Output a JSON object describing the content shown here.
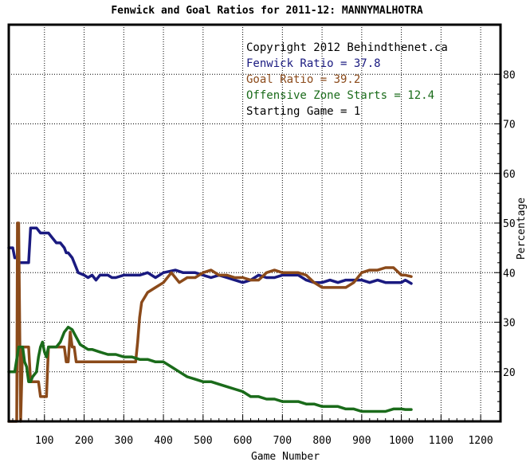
{
  "chart_data": {
    "type": "line",
    "title": "Fenwick and Goal Ratios for 2011-12: MANNYMALHOTRA",
    "xlabel": "Game Number",
    "ylabel": "Percentage",
    "xlim": [
      10,
      1250
    ],
    "ylim": [
      10,
      90
    ],
    "x_ticks": [
      100,
      200,
      300,
      400,
      500,
      600,
      700,
      800,
      900,
      1000,
      1100,
      1200
    ],
    "y_ticks": [
      20,
      30,
      40,
      50,
      60,
      70,
      80
    ],
    "grid": true,
    "legend": [
      {
        "text": "Copyright 2012 Behindthenet.ca",
        "color": "#000000"
      },
      {
        "text": "Fenwick Ratio = 37.8",
        "color": "#1a1a80"
      },
      {
        "text": "Goal Ratio = 39.2",
        "color": "#8b4a1a"
      },
      {
        "text": "Offensive Zone Starts = 12.4",
        "color": "#1a6b1a"
      },
      {
        "text": "Starting Game = 1",
        "color": "#000000"
      }
    ],
    "series": [
      {
        "color": "#1a1a80",
        "x": [
          10,
          20,
          25,
          30,
          35,
          40,
          60,
          65,
          80,
          90,
          100,
          110,
          120,
          130,
          140,
          150,
          155,
          160,
          170,
          180,
          185,
          200,
          210,
          220,
          230,
          240,
          260,
          270,
          280,
          300,
          320,
          340,
          360,
          380,
          400,
          430,
          450,
          480,
          500,
          520,
          540,
          560,
          580,
          600,
          620,
          640,
          660,
          680,
          700,
          720,
          740,
          760,
          780,
          800,
          820,
          840,
          860,
          880,
          900,
          920,
          940,
          960,
          980,
          1000,
          1010,
          1025
        ],
        "values": [
          45,
          45,
          43,
          43,
          42,
          42,
          42,
          49,
          49,
          48,
          48,
          48,
          47,
          46,
          46,
          45,
          44,
          44,
          43,
          41,
          40,
          39.5,
          39,
          39.5,
          38.5,
          39.5,
          39.5,
          39,
          39,
          39.5,
          39.5,
          39.5,
          40,
          39,
          40,
          40.5,
          40,
          40,
          39.5,
          39,
          39.5,
          39,
          38.5,
          38,
          38.5,
          39.5,
          39,
          39,
          39.5,
          39.5,
          39.5,
          38.5,
          38,
          38,
          38.5,
          38,
          38.5,
          38.5,
          38.5,
          38,
          38.5,
          38,
          38,
          38,
          38.5,
          37.8
        ]
      },
      {
        "color": "#8b4a1a",
        "x": [
          10,
          20,
          25,
          30,
          32,
          35,
          40,
          45,
          55,
          60,
          65,
          70,
          80,
          85,
          90,
          95,
          100,
          105,
          110,
          120,
          130,
          150,
          155,
          160,
          165,
          170,
          175,
          180,
          190,
          200,
          250,
          300,
          320,
          325,
          330,
          335,
          340,
          345,
          360,
          380,
          400,
          420,
          440,
          460,
          480,
          500,
          520,
          540,
          560,
          580,
          600,
          620,
          640,
          660,
          680,
          700,
          720,
          740,
          760,
          780,
          800,
          820,
          840,
          860,
          880,
          900,
          920,
          940,
          960,
          980,
          1000,
          1010,
          1025
        ],
        "values": [
          10,
          10,
          10,
          10,
          50,
          50,
          10,
          25,
          25,
          25,
          18,
          18,
          18,
          18,
          15,
          15,
          15,
          15,
          25,
          25,
          25,
          25,
          22,
          22,
          28,
          25,
          25,
          22,
          22,
          22,
          22,
          22,
          22,
          22,
          22,
          26,
          31,
          34,
          36,
          37,
          38,
          40,
          38,
          39,
          39,
          40,
          40.5,
          39.5,
          39.5,
          39,
          39,
          38.5,
          38.5,
          40,
          40.5,
          40,
          40,
          40,
          39.5,
          38,
          37,
          37,
          37,
          37,
          38,
          40,
          40.5,
          40.5,
          41,
          41,
          39.5,
          39.5,
          39.2
        ]
      },
      {
        "color": "#1a6b1a",
        "x": [
          10,
          15,
          20,
          25,
          35,
          40,
          45,
          50,
          55,
          60,
          65,
          70,
          80,
          85,
          90,
          95,
          100,
          105,
          110,
          120,
          130,
          140,
          150,
          160,
          170,
          180,
          190,
          200,
          210,
          220,
          240,
          260,
          280,
          300,
          320,
          340,
          360,
          380,
          400,
          420,
          440,
          460,
          480,
          500,
          520,
          540,
          560,
          580,
          600,
          620,
          640,
          660,
          680,
          700,
          720,
          740,
          760,
          780,
          800,
          820,
          840,
          860,
          880,
          900,
          920,
          940,
          960,
          980,
          1000,
          1010,
          1025
        ],
        "values": [
          20,
          20,
          20,
          20,
          25,
          25,
          25,
          22,
          21,
          18,
          18,
          19,
          20,
          23,
          25,
          26,
          24,
          23,
          25,
          25,
          25,
          26,
          28,
          29,
          28.5,
          27,
          25.5,
          25,
          24.5,
          24.5,
          24,
          23.5,
          23.5,
          23,
          23,
          22.5,
          22.5,
          22,
          22,
          21,
          20,
          19,
          18.5,
          18,
          18,
          17.5,
          17,
          16.5,
          16,
          15,
          15,
          14.5,
          14.5,
          14,
          14,
          14,
          13.5,
          13.5,
          13,
          13,
          13,
          12.5,
          12.5,
          12,
          12,
          12,
          12,
          12.5,
          12.5,
          12.4,
          12.4
        ]
      }
    ]
  }
}
